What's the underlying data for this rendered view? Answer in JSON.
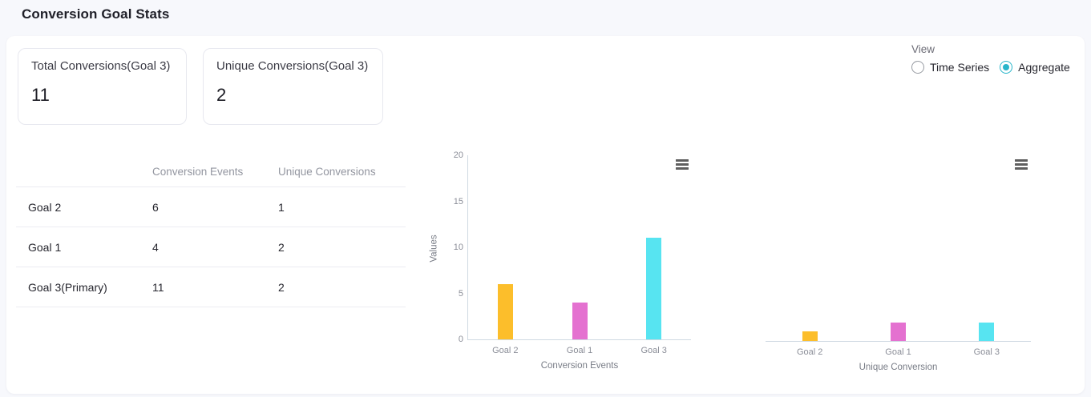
{
  "header": {
    "title": "Conversion Goal Stats"
  },
  "stat_cards": [
    {
      "label": "Total Conversions(Goal 3)",
      "value": "11"
    },
    {
      "label": "Unique Conversions(Goal 3)",
      "value": "2"
    }
  ],
  "view_control": {
    "label": "View",
    "options": [
      {
        "label": "Time Series",
        "selected": false
      },
      {
        "label": "Aggregate",
        "selected": true
      }
    ],
    "accent_color": "#28b5ca"
  },
  "table": {
    "headers": [
      "",
      "Conversion Events",
      "Unique Conversions"
    ],
    "rows": [
      {
        "name": "Goal 2",
        "conversion_events": "6",
        "unique_conversions": "1"
      },
      {
        "name": "Goal 1",
        "conversion_events": "4",
        "unique_conversions": "2"
      },
      {
        "name": "Goal 3(Primary)",
        "conversion_events": "11",
        "unique_conversions": "2"
      }
    ]
  },
  "chart_data": [
    {
      "type": "bar",
      "title": "",
      "categories": [
        "Goal 2",
        "Goal 1",
        "Goal 3"
      ],
      "values": [
        6,
        4,
        11
      ],
      "xlabel": "Conversion Events",
      "ylabel": "Values",
      "ylim": [
        0,
        20
      ],
      "yticks": [
        0,
        5,
        10,
        15,
        20
      ],
      "bar_colors": [
        "#fcbe2b",
        "#e471d0",
        "#57e4f1"
      ],
      "grid": false,
      "legend": "none",
      "menu_icon": "hamburger-icon"
    },
    {
      "type": "bar",
      "title": "",
      "categories": [
        "Goal 2",
        "Goal 1",
        "Goal 3"
      ],
      "values": [
        1,
        2,
        2
      ],
      "xlabel": "Unique Conversion",
      "ylabel": "",
      "ylim": [
        0,
        20
      ],
      "yticks": [],
      "bar_colors": [
        "#fcbe2b",
        "#e471d0",
        "#57e4f1"
      ],
      "grid": false,
      "legend": "none",
      "menu_icon": "hamburger-icon"
    }
  ]
}
